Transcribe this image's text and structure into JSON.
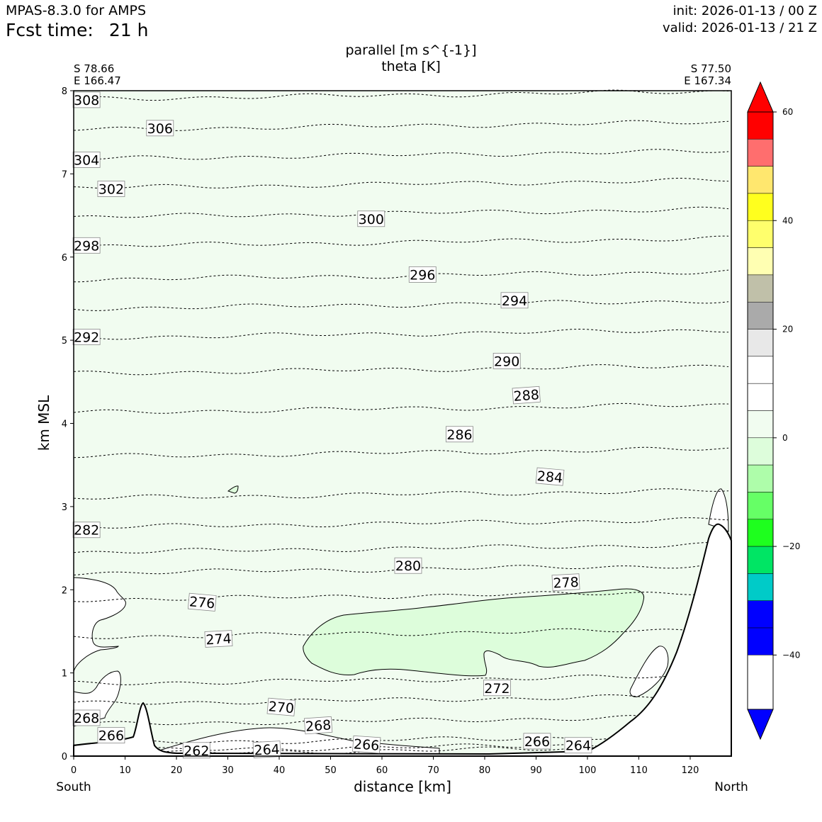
{
  "header": {
    "model": "MPAS-8.3.0 for AMPS",
    "fcst_label": "Fcst time:",
    "fcst_value": "21 h",
    "init": "init: 2026-01-13 / 00 Z",
    "valid": "valid: 2026-01-13 / 21 Z"
  },
  "chart_data": {
    "type": "cross-section",
    "title": "parallel [m s^{-1}]",
    "subtitle": "theta [K]",
    "xlabel": "distance [km]",
    "ylabel": "km MSL",
    "xlim": [
      0,
      128
    ],
    "ylim": [
      0,
      8
    ],
    "x_ticks": [
      "0",
      "10",
      "20",
      "30",
      "40",
      "50",
      "60",
      "70",
      "80",
      "90",
      "100",
      "110",
      "120"
    ],
    "y_ticks": [
      "0",
      "1",
      "2",
      "3",
      "4",
      "5",
      "6",
      "7",
      "8"
    ],
    "left_end": {
      "lat": "S 78.66",
      "lon": "E 166.47",
      "direction": "South"
    },
    "right_end": {
      "lat": "S 77.50",
      "lon": "E 167.34",
      "direction": "North"
    },
    "theta_contours": [
      {
        "value": 262,
        "level": 0.02
      },
      {
        "value": 264,
        "level": 0.06
      },
      {
        "value": 266,
        "level": 0.15
      },
      {
        "value": 268,
        "level": 0.38
      },
      {
        "value": 270,
        "level": 0.63
      },
      {
        "value": 272,
        "level": 0.87
      },
      {
        "value": 274,
        "level": 1.43
      },
      {
        "value": 276,
        "level": 1.88
      },
      {
        "value": 278,
        "level": 2.2
      },
      {
        "value": 280,
        "level": 2.45
      },
      {
        "value": 282,
        "level": 2.75
      },
      {
        "value": 284,
        "level": 3.1
      },
      {
        "value": 286,
        "level": 3.6
      },
      {
        "value": 288,
        "level": 4.13
      },
      {
        "value": 290,
        "level": 4.6
      },
      {
        "value": 292,
        "level": 5.03
      },
      {
        "value": 294,
        "level": 5.38
      },
      {
        "value": 296,
        "level": 5.73
      },
      {
        "value": 298,
        "level": 6.13
      },
      {
        "value": 300,
        "level": 6.48
      },
      {
        "value": 302,
        "level": 6.83
      },
      {
        "value": 304,
        "level": 7.18
      },
      {
        "value": 306,
        "level": 7.53
      },
      {
        "value": 308,
        "level": 7.9
      }
    ],
    "contour_labels": [
      {
        "text": "308",
        "x": 2.5,
        "y": 7.89,
        "rot": 0
      },
      {
        "text": "306",
        "x": 16.8,
        "y": 7.55,
        "rot": 0
      },
      {
        "text": "304",
        "x": 2.5,
        "y": 7.17,
        "rot": 0
      },
      {
        "text": "302",
        "x": 7.3,
        "y": 6.82,
        "rot": 0
      },
      {
        "text": "300",
        "x": 57.9,
        "y": 6.46,
        "rot": 0
      },
      {
        "text": "298",
        "x": 2.5,
        "y": 6.14,
        "rot": 0
      },
      {
        "text": "296",
        "x": 67.9,
        "y": 5.79,
        "rot": 0
      },
      {
        "text": "294",
        "x": 85.8,
        "y": 5.48,
        "rot": 0
      },
      {
        "text": "292",
        "x": 2.5,
        "y": 5.04,
        "rot": 0
      },
      {
        "text": "290",
        "x": 84.3,
        "y": 4.75,
        "rot": 0
      },
      {
        "text": "288",
        "x": 88.1,
        "y": 4.34,
        "rot": -4
      },
      {
        "text": "286",
        "x": 75.1,
        "y": 3.87,
        "rot": 0
      },
      {
        "text": "284",
        "x": 92.7,
        "y": 3.36,
        "rot": 5
      },
      {
        "text": "282",
        "x": 2.5,
        "y": 2.72,
        "rot": 0
      },
      {
        "text": "280",
        "x": 65.1,
        "y": 2.29,
        "rot": 0
      },
      {
        "text": "278",
        "x": 95.8,
        "y": 2.09,
        "rot": -3
      },
      {
        "text": "276",
        "x": 25.0,
        "y": 1.85,
        "rot": 5
      },
      {
        "text": "274",
        "x": 28.2,
        "y": 1.41,
        "rot": -3
      },
      {
        "text": "272",
        "x": 82.4,
        "y": 0.82,
        "rot": 0
      },
      {
        "text": "270",
        "x": 40.4,
        "y": 0.59,
        "rot": 5
      },
      {
        "text": "268",
        "x": 2.5,
        "y": 0.46,
        "rot": 0
      },
      {
        "text": "268",
        "x": 47.6,
        "y": 0.37,
        "rot": -4
      },
      {
        "text": "266",
        "x": 7.3,
        "y": 0.25,
        "rot": 0
      },
      {
        "text": "266",
        "x": 57.0,
        "y": 0.14,
        "rot": 4
      },
      {
        "text": "266",
        "x": 90.2,
        "y": 0.18,
        "rot": 0
      },
      {
        "text": "264",
        "x": 37.6,
        "y": 0.08,
        "rot": -3
      },
      {
        "text": "264",
        "x": 98.2,
        "y": 0.13,
        "rot": 0
      },
      {
        "text": "262",
        "x": 23.9,
        "y": 0.07,
        "rot": 0
      }
    ],
    "parallel_wind_fills": [
      {
        "range": "-5 to 0 m/s",
        "color": "#f1fcf0",
        "region": "domain background"
      },
      {
        "range": "-10 to -5 m/s",
        "color": "#ddfddb",
        "region": "jet core x 45-111 km, 1.0-2.0 km"
      },
      {
        "range": "0 to 5 m/s",
        "color": "#ffffff",
        "region": "near-surface south, pockets near x 110-118 km"
      }
    ],
    "colorbar": {
      "levels": [
        60,
        55,
        50,
        45,
        40,
        35,
        30,
        25,
        20,
        15,
        10,
        5,
        0,
        -5,
        -10,
        -15,
        -20,
        -25,
        -30,
        -35,
        -40,
        -45,
        -50
      ],
      "colors": [
        "#ff0000",
        "#ff6e6e",
        "#ffe76e",
        "#ffff1e",
        "#ffff6c",
        "#ffffb2",
        "#c0c0a9",
        "#aaaaaa",
        "#e8e8e8",
        "#ffffff",
        "#ffffff",
        "#f1fcf0",
        "#ddfddb",
        "#aefdaa",
        "#66ff66",
        "#1eff1e",
        "#00e564",
        "#00cbc8",
        "#0000ff",
        "#0000ff"
      ],
      "extend_top": "#ff0000",
      "extend_bottom": "#0000ff",
      "tick_values": [
        60,
        40,
        20,
        0,
        -20,
        -40
      ],
      "tick_labels": [
        "60",
        "40",
        "20",
        "0",
        "−20",
        "−40"
      ]
    }
  }
}
